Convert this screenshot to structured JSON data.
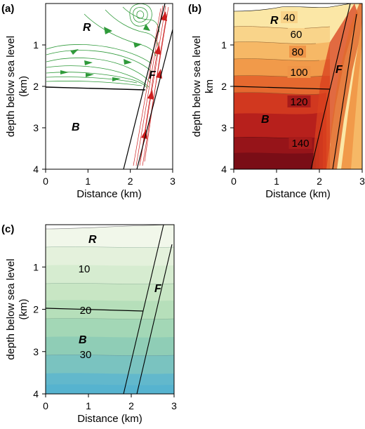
{
  "colors": {
    "streamline": "#2f9a3a",
    "fault_flow": "#cc1d1d",
    "boundary": "#000000",
    "temp_low": "#fbe7a6",
    "temp_high": "#7a0d16",
    "conc_low": "#f1f7ea",
    "conc_high": "#56b3cf"
  },
  "chart_data": [
    {
      "id": "a",
      "panel_label": "(a)",
      "type": "streamline",
      "xlabel": "Distance (km)",
      "ylabel": "depth below sea level\n(km)",
      "xlim": [
        0,
        3
      ],
      "ylim": [
        4,
        0
      ],
      "xticks": [
        "0",
        "1",
        "2",
        "3"
      ],
      "yticks": [
        "1",
        "2",
        "3",
        "4"
      ],
      "zones": [
        "R",
        "F",
        "B"
      ],
      "boundary_depth_km": 2.1,
      "fault": {
        "left_top": [
          2.65,
          0
        ],
        "left_bottom": [
          1.85,
          4
        ],
        "right_top": [
          3.0,
          0.6
        ],
        "right_bottom": [
          2.15,
          4
        ]
      }
    },
    {
      "id": "b",
      "panel_label": "(b)",
      "type": "contour",
      "xlabel": "Distance (km)",
      "ylabel": "depth below sea level\nkm",
      "xlim": [
        0,
        3
      ],
      "ylim": [
        4,
        0
      ],
      "xticks": [
        "0",
        "1",
        "2",
        "3"
      ],
      "yticks": [
        "1",
        "2",
        "3",
        "4"
      ],
      "zones": [
        "R",
        "F",
        "B"
      ],
      "boundary_depth_km": 2.1,
      "contour_levels": [
        40,
        60,
        80,
        100,
        120,
        140
      ],
      "contour_labels": [
        "40",
        "60",
        "80",
        "100",
        "120",
        "140"
      ],
      "fault": {
        "left_top": [
          2.75,
          0
        ],
        "left_bottom": [
          1.85,
          4
        ],
        "right_top": [
          2.9,
          0.3
        ],
        "right_bottom": [
          2.35,
          4
        ]
      }
    },
    {
      "id": "c",
      "panel_label": "(c)",
      "type": "contour",
      "xlabel": "Distance (km)",
      "ylabel": "depth below sea level\n(km)",
      "xlim": [
        0,
        3
      ],
      "ylim": [
        4,
        0
      ],
      "xticks": [
        "0",
        "1",
        "2",
        "3"
      ],
      "yticks": [
        "1",
        "2",
        "3",
        "4"
      ],
      "zones": [
        "R",
        "F",
        "B"
      ],
      "boundary_depth_km": 2.1,
      "contour_levels": [
        10,
        20,
        30
      ],
      "contour_labels": [
        "10",
        "20",
        "30"
      ],
      "fault": {
        "left_top": [
          2.7,
          0
        ],
        "left_bottom": [
          1.8,
          4
        ],
        "right_top": [
          2.95,
          0.4
        ],
        "right_bottom": [
          2.15,
          4
        ]
      }
    }
  ]
}
